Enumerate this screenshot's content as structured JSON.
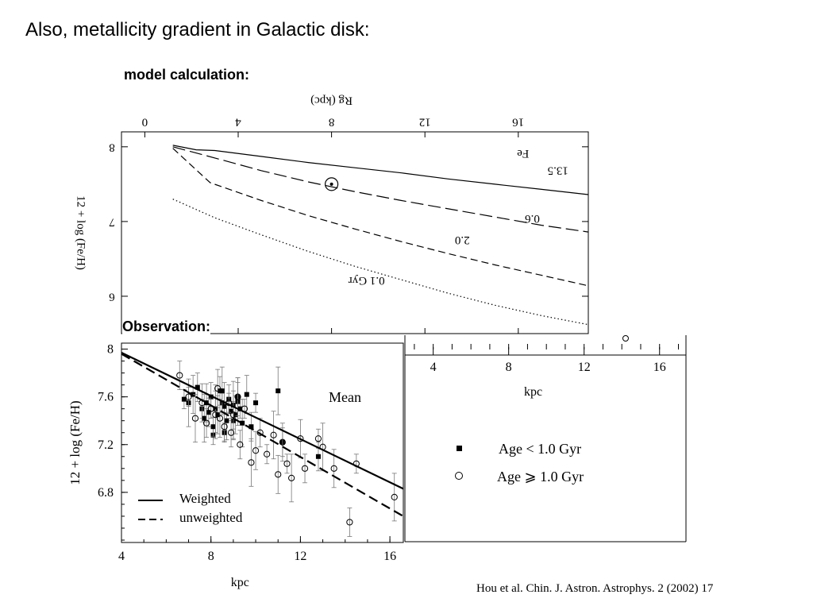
{
  "slide": {
    "title": "Also, metallicity gradient in Galactic disk:",
    "model_label": "model calculation:",
    "observation_label": "Observation:",
    "citation": "Hou et al. Chin. J. Astron. Astrophys. 2 (2002) 17"
  },
  "chart_data": [
    {
      "type": "line",
      "orientation": "rotated 180 degrees in source",
      "xlabel": "Rg (kpc)",
      "ylabel": "12 + log (Fe/H)",
      "x_ticks": [
        "0",
        "4",
        "8",
        "12",
        "16"
      ],
      "y_ticks": [
        "8",
        "7",
        "6"
      ],
      "xlim": [
        -1,
        19
      ],
      "ylim": [
        5.5,
        8.2
      ],
      "annotation": "Fe",
      "sun_symbol": {
        "x": 8,
        "y": 7.5
      },
      "series": [
        {
          "name": "0.1 Gyr",
          "style": "dotted",
          "x": [
            1.2,
            3,
            5,
            7,
            9,
            11,
            13,
            15,
            17,
            19
          ],
          "y": [
            7.3,
            7.05,
            6.82,
            6.6,
            6.4,
            6.22,
            6.04,
            5.88,
            5.74,
            5.62
          ]
        },
        {
          "name": "2.0",
          "style": "dashed",
          "x": [
            1.2,
            2.8,
            5,
            7,
            9,
            11,
            13,
            15,
            17,
            19
          ],
          "y": [
            7.98,
            7.52,
            7.28,
            7.08,
            6.9,
            6.73,
            6.57,
            6.42,
            6.28,
            6.14
          ]
        },
        {
          "name": "0.6",
          "style": "longdash",
          "x": [
            1.2,
            3,
            5,
            7,
            9,
            11,
            13,
            15,
            17,
            19
          ],
          "y": [
            8.0,
            7.85,
            7.68,
            7.53,
            7.4,
            7.28,
            7.17,
            7.06,
            6.95,
            6.86
          ]
        },
        {
          "name": "13.5",
          "style": "solid",
          "x": [
            1.2,
            2.2,
            3,
            5,
            7,
            9,
            11,
            13,
            15,
            17,
            19
          ],
          "y": [
            8.02,
            7.96,
            7.95,
            7.87,
            7.79,
            7.72,
            7.65,
            7.57,
            7.5,
            7.43,
            7.36
          ]
        }
      ]
    },
    {
      "type": "scatter",
      "xlabel": "kpc",
      "ylabel": "12 + log (Fe/H)",
      "x_ticks": [
        "4",
        "8",
        "12",
        "16"
      ],
      "y_ticks": [
        "8",
        "7.6",
        "7.2",
        "6.8"
      ],
      "xlim": [
        4,
        16.6
      ],
      "ylim": [
        6.38,
        8.05
      ],
      "annotation": "Mean",
      "legend": [
        {
          "label": "Weighted",
          "style": "solid"
        },
        {
          "label": "unweighted",
          "style": "dashed"
        }
      ],
      "fit_lines": [
        {
          "name": "Weighted",
          "style": "solid",
          "x": [
            4,
            16.6
          ],
          "y": [
            7.97,
            6.83
          ]
        },
        {
          "name": "unweighted",
          "style": "dashed",
          "x": [
            4,
            16.6
          ],
          "y": [
            7.96,
            6.6
          ]
        }
      ],
      "series": [
        {
          "name": "Age < 1.0 Gyr",
          "marker": "filled-square",
          "x": [
            6.8,
            7.0,
            7.2,
            7.4,
            7.6,
            7.7,
            7.8,
            8.0,
            8.1,
            8.2,
            8.3,
            8.4,
            8.5,
            8.6,
            8.7,
            8.8,
            8.9,
            9.0,
            9.1,
            9.2,
            9.3,
            9.4,
            9.6,
            9.8,
            10.0,
            11.0,
            11.2,
            12.8,
            8.1,
            8.5,
            9.0,
            7.9,
            8.6,
            9.2
          ],
          "y": [
            7.58,
            7.55,
            7.62,
            7.68,
            7.5,
            7.42,
            7.55,
            7.6,
            7.28,
            7.5,
            7.45,
            7.65,
            7.55,
            7.52,
            7.4,
            7.58,
            7.48,
            7.53,
            7.45,
            7.6,
            7.5,
            7.38,
            7.62,
            7.35,
            7.55,
            7.65,
            7.22,
            7.1,
            7.35,
            7.65,
            7.4,
            7.47,
            7.3,
            7.56
          ]
        },
        {
          "name": "Age ≥ 1.0 Gyr",
          "marker": "open-circle",
          "x": [
            6.6,
            7.0,
            7.3,
            7.6,
            7.8,
            8.0,
            8.2,
            8.4,
            8.6,
            8.8,
            9.0,
            9.2,
            9.3,
            9.5,
            9.8,
            10.0,
            10.2,
            10.5,
            10.8,
            11.0,
            11.2,
            11.4,
            11.6,
            12.0,
            12.2,
            12.8,
            13.0,
            13.5,
            14.2,
            14.5,
            16.2,
            8.3,
            8.9
          ],
          "y": [
            7.78,
            7.6,
            7.42,
            7.55,
            7.38,
            7.5,
            7.45,
            7.42,
            7.35,
            7.55,
            7.45,
            7.6,
            7.2,
            7.5,
            7.05,
            7.15,
            7.3,
            7.12,
            7.28,
            6.95,
            7.22,
            7.04,
            6.92,
            7.25,
            7.0,
            7.25,
            7.18,
            7.0,
            6.55,
            7.04,
            6.76,
            7.67,
            7.3
          ]
        }
      ]
    },
    {
      "type": "scatter",
      "legend_title": "",
      "xlabel": "kpc",
      "x_ticks": [
        "4",
        "8",
        "12",
        "16"
      ],
      "xlim": [
        2.5,
        17.4
      ],
      "legend": [
        {
          "label": "Age  <  1.0  Gyr",
          "marker": "filled-square"
        },
        {
          "label": "Age  ⩾  1.0  Gyr",
          "marker": "open-circle"
        }
      ],
      "series": [
        {
          "name": "Age ≥ 1.0 Gyr",
          "marker": "open-circle",
          "x": [
            14.2
          ],
          "y": [
            0
          ]
        }
      ]
    }
  ]
}
